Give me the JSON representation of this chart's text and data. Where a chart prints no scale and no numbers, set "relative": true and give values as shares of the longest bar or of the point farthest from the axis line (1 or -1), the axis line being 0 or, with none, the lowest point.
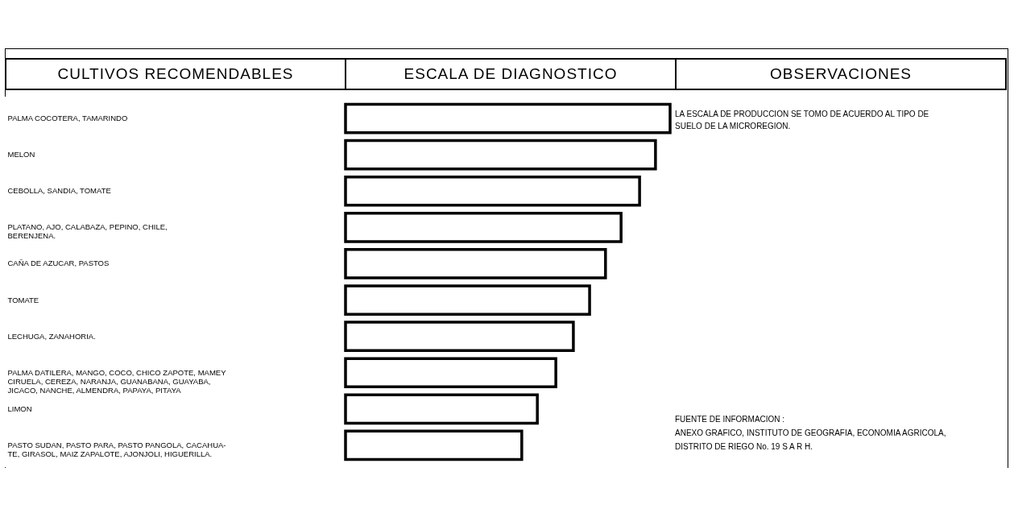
{
  "chart_data": {
    "type": "bar",
    "orientation": "horizontal",
    "relative": true,
    "color": "#ffffff",
    "ylabel": "CULTIVOS RECOMENDABLES",
    "xlabel": "ESCALA DE DIAGNOSTICO",
    "annotations": [
      "OBSERVACIONES",
      "LA ESCALA DE PRODUCCION SE TOMO DE ACUERDO AL TIPO DE SUELO DE LA MICROREGION.",
      "FUENTE DE INFORMACION :",
      "ANEXO GRAFICO, INSTITUTO DE GEOGRAFIA, ECONOMIA AGRICOLA, DISTRITO DE RIEGO No. 19 S A R H."
    ],
    "categories": [
      "PALMA COCOTERA, TAMARINDO",
      "MELON",
      "CEBOLLA, SANDIA, TOMATE",
      "PLATANO, AJO, CALABAZA, PEPINO, CHILE,\nBERENJENA.",
      "CAÑA DE AZUCAR, PASTOS",
      "TOMATE",
      "LECHUGA, ZANAHORIA.",
      "PALMA DATILERA, MANGO, COCO, CHICO ZAPOTE, MAMEY\nCIRUELA, CEREZA, NARANJA, GUANABANA, GUAYABA,\nJICACO, NANCHE, ALMENDRA, PAPAYA, PITAYA",
      "LIMON",
      "PASTO SUDAN, PASTO PARA, PASTO PANGOLA, CACAHUA-\nTE, GIRASOL, MAIZ ZAPALOTE, AJONJOLI, HIGUERILLA."
    ],
    "values": [
      1,
      0.955,
      0.906,
      0.849,
      0.801,
      0.752,
      0.702,
      0.648,
      0.591,
      0.543
    ]
  }
}
